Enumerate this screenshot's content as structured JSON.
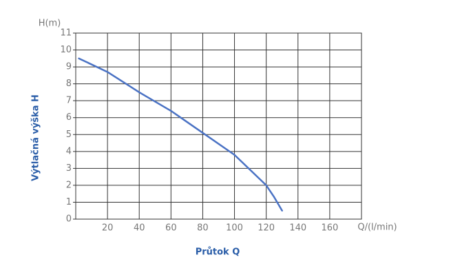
{
  "chart_data": {
    "type": "line",
    "y_unit_label": "H(m)",
    "x_unit_label": "Q/(l/min)",
    "y_axis_title": "Výtlačná výška H",
    "x_axis_title": "Průtok Q",
    "series": [
      {
        "color": "#4a72c4",
        "x": [
          2,
          20,
          40,
          60,
          80,
          100,
          120,
          125,
          130
        ],
        "values": [
          9.5,
          8.7,
          7.5,
          6.4,
          5.1,
          3.8,
          2.0,
          1.3,
          0.5
        ]
      }
    ],
    "xlim": [
      0,
      180
    ],
    "xticks": [
      20,
      40,
      60,
      80,
      100,
      120,
      140,
      160
    ],
    "ylim": [
      0,
      11
    ],
    "yticks": [
      0,
      1,
      2,
      3,
      4,
      5,
      6,
      7,
      8,
      9,
      10,
      11
    ],
    "grid": true
  }
}
